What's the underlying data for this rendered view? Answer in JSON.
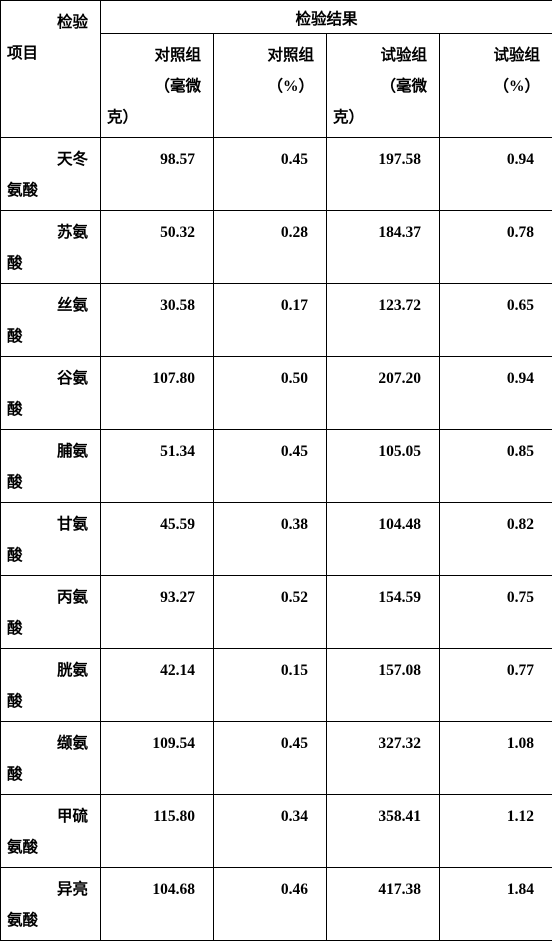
{
  "header": {
    "col1_l1": "检验",
    "col1_l2": "项目",
    "results_title": "检验结果",
    "sub": [
      {
        "l1": "对照组",
        "l2": "（毫微",
        "l3": "克）"
      },
      {
        "l1": "对照组",
        "l2": "（%）",
        "l3": ""
      },
      {
        "l1": "试验组",
        "l2": "（毫微",
        "l3": "克）"
      },
      {
        "l1": "试验组",
        "l2": "（%）",
        "l3": ""
      }
    ]
  },
  "rows": [
    {
      "name_l1": "天冬",
      "name_l2": "氨酸",
      "v1": "98.57",
      "v2": "0.45",
      "v3": "197.58",
      "v4": "0.94"
    },
    {
      "name_l1": "苏氨",
      "name_l2": "酸",
      "v1": "50.32",
      "v2": "0.28",
      "v3": "184.37",
      "v4": "0.78"
    },
    {
      "name_l1": "丝氨",
      "name_l2": "酸",
      "v1": "30.58",
      "v2": "0.17",
      "v3": "123.72",
      "v4": "0.65"
    },
    {
      "name_l1": "谷氨",
      "name_l2": "酸",
      "v1": "107.80",
      "v2": "0.50",
      "v3": "207.20",
      "v4": "0.94"
    },
    {
      "name_l1": "脯氨",
      "name_l2": "酸",
      "v1": "51.34",
      "v2": "0.45",
      "v3": "105.05",
      "v4": "0.85"
    },
    {
      "name_l1": "甘氨",
      "name_l2": "酸",
      "v1": "45.59",
      "v2": "0.38",
      "v3": "104.48",
      "v4": "0.82"
    },
    {
      "name_l1": "丙氨",
      "name_l2": "酸",
      "v1": "93.27",
      "v2": "0.52",
      "v3": "154.59",
      "v4": "0.75"
    },
    {
      "name_l1": "胱氨",
      "name_l2": "酸",
      "v1": "42.14",
      "v2": "0.15",
      "v3": "157.08",
      "v4": "0.77"
    },
    {
      "name_l1": "缬氨",
      "name_l2": "酸",
      "v1": "109.54",
      "v2": "0.45",
      "v3": "327.32",
      "v4": "1.08"
    },
    {
      "name_l1": "甲硫",
      "name_l2": "氨酸",
      "v1": "115.80",
      "v2": "0.34",
      "v3": "358.41",
      "v4": "1.12"
    },
    {
      "name_l1": "异亮",
      "name_l2": "氨酸",
      "v1": "104.68",
      "v2": "0.46",
      "v3": "417.38",
      "v4": "1.84"
    }
  ],
  "style": {
    "border_color": "#000000",
    "bg_color": "#ffffff",
    "font_family": "SimSun",
    "font_size_pt": 12,
    "font_weight": "bold"
  }
}
